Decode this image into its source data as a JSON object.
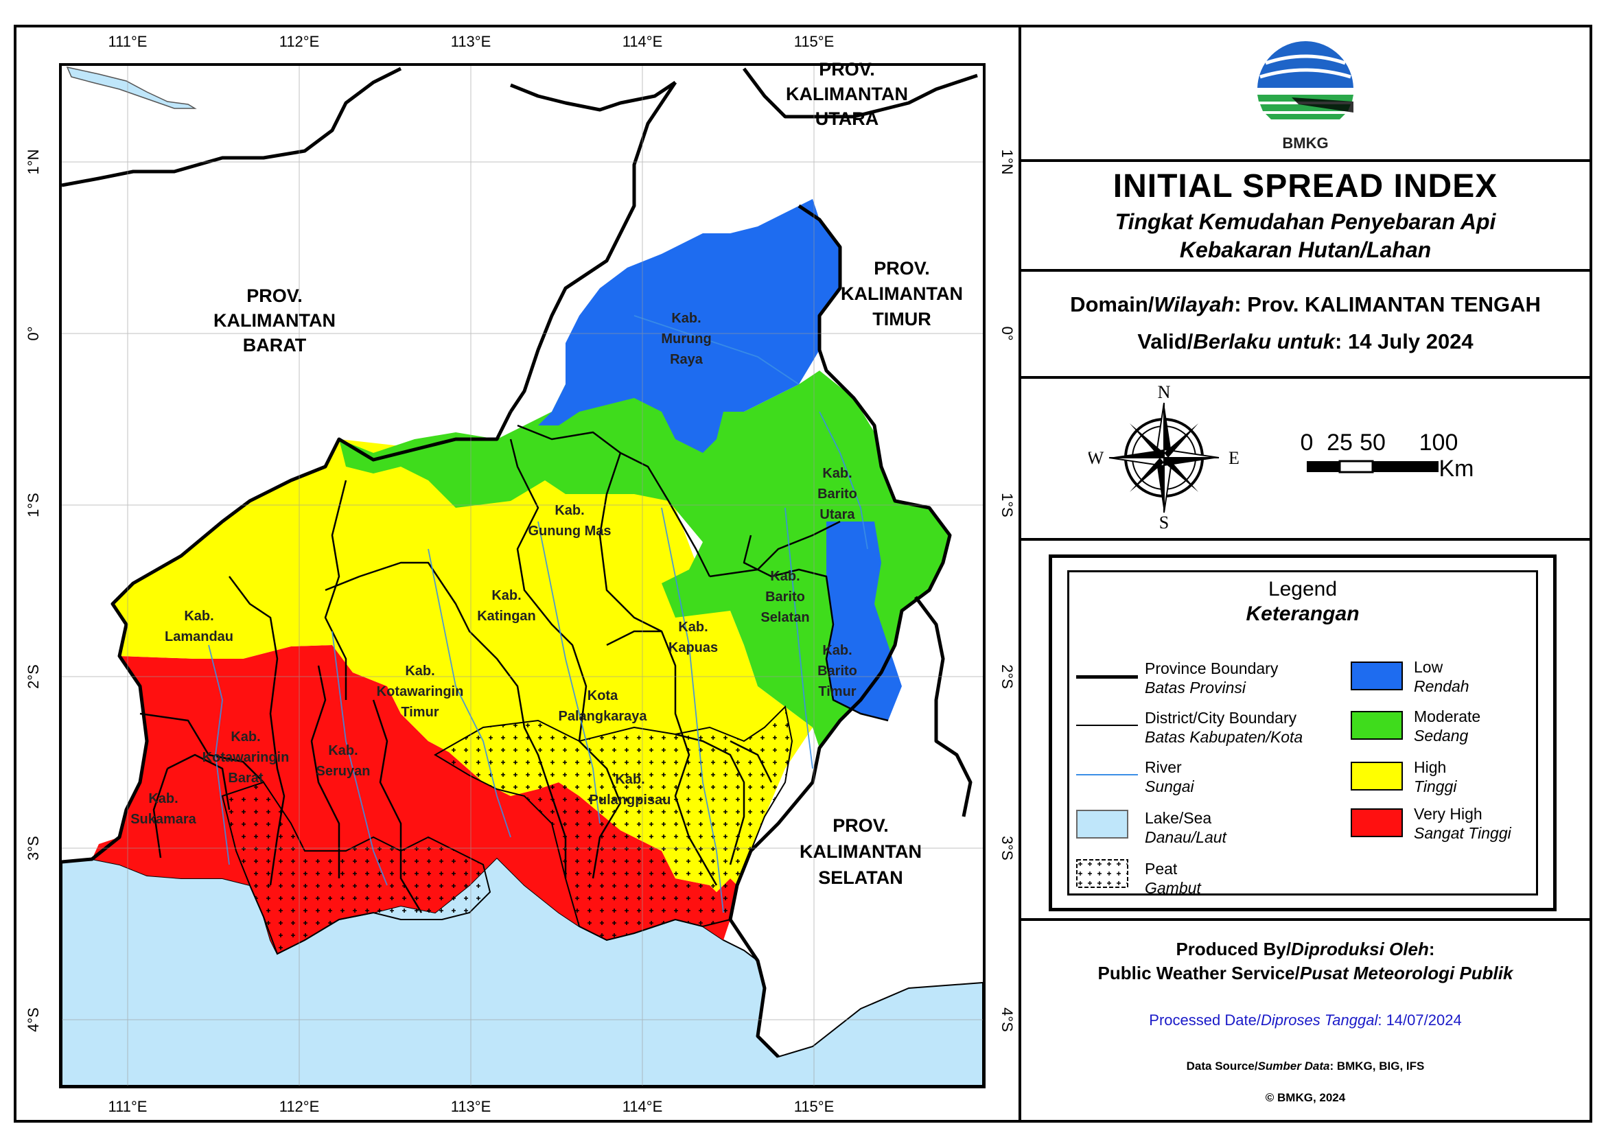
{
  "header": {
    "logo_text": "BMKG",
    "title": "INITIAL SPREAD INDEX",
    "subtitle_line1": "Tingkat Kemudahan Penyebaran Api",
    "subtitle_line2": "Kebakaran Hutan/Lahan"
  },
  "domain": {
    "label_en": "Domain",
    "label_id": "Wilayah",
    "value": ": Prov. KALIMANTAN TENGAH",
    "valid_en": "Valid",
    "valid_id": "Berlaku untuk",
    "valid_value": ": 14 July 2024"
  },
  "compass": {
    "n": "N",
    "s": "S",
    "e": "E",
    "w": "W"
  },
  "scale": {
    "ticks": [
      "0",
      "25",
      "50",
      "100"
    ],
    "unit": "Km"
  },
  "legend": {
    "title": "Legend",
    "subtitle": "Keterangan",
    "items": [
      {
        "en": "Province Boundary",
        "id": "Batas Provinsi"
      },
      {
        "en": "District/City Boundary",
        "id": "Batas Kabupaten/Kota"
      },
      {
        "en": "River",
        "id": "Sungai"
      },
      {
        "en": "Lake/Sea",
        "id": "Danau/Laut"
      },
      {
        "en": "Peat",
        "id": "Gambut"
      },
      {
        "en": "Low",
        "id": "Rendah"
      },
      {
        "en": "Moderate",
        "id": "Sedang"
      },
      {
        "en": "High",
        "id": "Tinggi"
      },
      {
        "en": "Very High",
        "id": "Sangat Tinggi"
      }
    ]
  },
  "colors": {
    "low": "#1e6cf0",
    "moderate": "#3fdc1c",
    "high": "#ffff00",
    "very_high": "#ff1010",
    "sea": "#bfe6fa",
    "river": "#3a8ee6"
  },
  "footer": {
    "produced_en": "Produced By/",
    "produced_id": "Diproduksi Oleh",
    "service_en": "Public Weather Service/",
    "service_id": "Pusat Meteorologi Publik",
    "processed_en": "Processed Date/",
    "processed_id": "Diproses Tanggal",
    "processed_value": ": 14/07/2024",
    "source_en": "Data Source/",
    "source_id": "Sumber Data",
    "source_value": ": BMKG, BIG, IFS",
    "copyright": "© BMKG, 2024"
  },
  "map": {
    "lon_labels": [
      "111°E",
      "112°E",
      "113°E",
      "114°E",
      "115°E"
    ],
    "lat_labels": [
      "1°N",
      "0°",
      "1°S",
      "2°S",
      "3°S",
      "4°S"
    ],
    "provinces": [
      {
        "lines": [
          "PROV.",
          "KALIMANTAN",
          "UTARA"
        ]
      },
      {
        "lines": [
          "PROV.",
          "KALIMANTAN",
          "BARAT"
        ]
      },
      {
        "lines": [
          "PROV.",
          "KALIMANTAN",
          "TIMUR"
        ]
      },
      {
        "lines": [
          "PROV.",
          "KALIMANTAN",
          "SELATAN"
        ]
      }
    ],
    "districts": [
      {
        "lines": [
          "Kab.",
          "Murung",
          "Raya"
        ]
      },
      {
        "lines": [
          "Kab.",
          "Barito",
          "Utara"
        ]
      },
      {
        "lines": [
          "Kab.",
          "Gunung Mas"
        ]
      },
      {
        "lines": [
          "Kab.",
          "Barito",
          "Selatan"
        ]
      },
      {
        "lines": [
          "Kab.",
          "Katingan"
        ]
      },
      {
        "lines": [
          "Kab.",
          "Kapuas"
        ]
      },
      {
        "lines": [
          "Kab.",
          "Lamandau"
        ]
      },
      {
        "lines": [
          "Kab.",
          "Barito",
          "Timur"
        ]
      },
      {
        "lines": [
          "Kab.",
          "Kotawaringin",
          "Timur"
        ]
      },
      {
        "lines": [
          "Kota",
          "Palangkaraya"
        ]
      },
      {
        "lines": [
          "Kab.",
          "Kotawaringin",
          "Barat"
        ]
      },
      {
        "lines": [
          "Kab.",
          "Seruyan"
        ]
      },
      {
        "lines": [
          "Kab.",
          "Pulangpisau"
        ]
      },
      {
        "lines": [
          "Kab.",
          "Sukamara"
        ]
      }
    ]
  }
}
